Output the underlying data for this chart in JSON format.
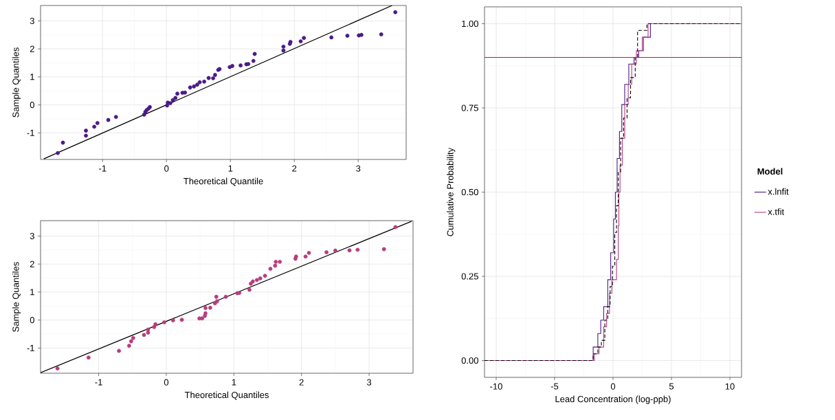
{
  "chart_data": [
    {
      "type": "scatter",
      "xlabel": "Theoretical Quantile",
      "ylabel": "Sample Quantiles",
      "xlim": [
        -1.97,
        3.75
      ],
      "ylim": [
        -1.95,
        3.55
      ],
      "xticks": [
        -1,
        0,
        1,
        2,
        3
      ],
      "yticks": [
        -1,
        0,
        1,
        2,
        3
      ],
      "grid": true,
      "series": [
        {
          "type": "scatter",
          "color": "#4b1a87",
          "x": [
            -1.7,
            -1.62,
            -1.26,
            -1.26,
            -1.13,
            -1.08,
            -0.91,
            -0.79,
            -0.35,
            -0.33,
            -0.31,
            -0.28,
            -0.26,
            0.01,
            0.02,
            0.06,
            0.1,
            0.14,
            0.17,
            0.25,
            0.29,
            0.37,
            0.43,
            0.48,
            0.52,
            0.59,
            0.66,
            0.73,
            0.76,
            0.81,
            0.83,
            0.99,
            1.03,
            1.16,
            1.25,
            1.28,
            1.36,
            1.38,
            1.83,
            1.83,
            1.93,
            1.94,
            2.1,
            2.15,
            2.58,
            2.83,
            3.01,
            3.05,
            3.36,
            3.58
          ],
          "values": [
            -1.72,
            -1.35,
            -0.92,
            -1.1,
            -0.78,
            -0.65,
            -0.54,
            -0.43,
            -0.35,
            -0.25,
            -0.19,
            -0.13,
            -0.08,
            -0.02,
            0.08,
            0.06,
            0.17,
            0.25,
            0.4,
            0.43,
            0.44,
            0.62,
            0.66,
            0.72,
            0.81,
            0.83,
            0.96,
            0.95,
            1.07,
            1.25,
            1.28,
            1.35,
            1.39,
            1.41,
            1.45,
            1.46,
            1.57,
            1.82,
            1.94,
            2.08,
            2.18,
            2.25,
            2.27,
            2.39,
            2.41,
            2.47,
            2.48,
            2.5,
            2.52,
            3.31
          ]
        },
        {
          "type": "line",
          "color": "#000000",
          "x": [
            -1.92,
            3.53
          ],
          "values": [
            -1.93,
            3.55
          ]
        }
      ]
    },
    {
      "type": "scatter",
      "xlabel": "Theoretical Quantiles",
      "ylabel": "Sample Quantiles",
      "xlim": [
        -1.86,
        3.65
      ],
      "ylim": [
        -1.9,
        3.55
      ],
      "xticks": [
        -1,
        0,
        1,
        2,
        3
      ],
      "yticks": [
        -1,
        0,
        1,
        2,
        3
      ],
      "grid": true,
      "series": [
        {
          "type": "scatter",
          "color": "#b83d7f",
          "x": [
            -1.61,
            -1.15,
            -0.7,
            -0.55,
            -0.52,
            -0.49,
            -0.33,
            -0.27,
            -0.27,
            -0.18,
            -0.16,
            -0.03,
            0.1,
            0.23,
            0.49,
            0.53,
            0.57,
            0.58,
            0.58,
            0.65,
            0.72,
            0.75,
            0.74,
            0.88,
            1.05,
            1.08,
            1.23,
            1.25,
            1.28,
            1.34,
            1.39,
            1.46,
            1.54,
            1.61,
            1.62,
            1.68,
            1.91,
            1.92,
            2.06,
            2.11,
            2.37,
            2.5,
            2.71,
            2.83,
            3.22,
            3.39
          ],
          "values": [
            -1.73,
            -1.34,
            -1.1,
            -0.92,
            -0.76,
            -0.64,
            -0.53,
            -0.45,
            -0.34,
            -0.25,
            -0.15,
            -0.08,
            -0.01,
            0.01,
            0.06,
            0.06,
            0.15,
            0.24,
            0.43,
            0.44,
            0.6,
            0.67,
            0.83,
            0.83,
            0.96,
            0.97,
            1.08,
            1.3,
            1.38,
            1.43,
            1.49,
            1.58,
            1.83,
            1.94,
            2.08,
            2.08,
            2.19,
            2.27,
            2.27,
            2.4,
            2.42,
            2.48,
            2.49,
            2.51,
            2.53,
            3.32
          ]
        },
        {
          "type": "line",
          "color": "#000000",
          "x": [
            -1.86,
            3.63
          ],
          "values": [
            -1.88,
            3.53
          ]
        }
      ]
    },
    {
      "type": "step",
      "xlabel": "Lead Concentration (log-ppb)",
      "ylabel": "Cumulative Probability",
      "legend_title": "Model",
      "legend": "right",
      "xlim": [
        -11,
        11
      ],
      "ylim": [
        -0.05,
        1.05
      ],
      "xticks": [
        -10,
        -5,
        0,
        5,
        10
      ],
      "yticks": [
        {
          "value": 0,
          "label": "0.00"
        },
        {
          "value": 0.25,
          "label": "0.25"
        },
        {
          "value": 0.5,
          "label": "0.50"
        },
        {
          "value": 0.75,
          "label": "0.75"
        },
        {
          "value": 1,
          "label": "1.00"
        }
      ],
      "grid": true,
      "ref_lines": [
        {
          "axis": "y",
          "value": 0.9,
          "color": "#ff0000"
        }
      ],
      "series": [
        {
          "name": "x.lnfit",
          "color": "#4b1a87",
          "x": [
            -11,
            -1.7,
            -1.3,
            -1.05,
            -0.8,
            -0.45,
            -0.2,
            0.05,
            0.2,
            0.35,
            0.55,
            0.75,
            1.0,
            1.35,
            1.8,
            2.2,
            2.6,
            3.2,
            11
          ],
          "values": [
            0,
            0.04,
            0.08,
            0.12,
            0.16,
            0.24,
            0.32,
            0.42,
            0.5,
            0.6,
            0.68,
            0.76,
            0.82,
            0.88,
            0.9,
            0.92,
            0.96,
            1,
            1
          ]
        },
        {
          "name": "x.tfit",
          "color": "#b83d7f",
          "x": [
            -11,
            -1.6,
            -1.2,
            -0.8,
            -0.55,
            -0.3,
            -0.1,
            0.3,
            0.45,
            0.5,
            0.6,
            0.8,
            1.0,
            1.3,
            1.6,
            2.0,
            2.5,
            3.0,
            11
          ],
          "values": [
            0,
            0.02,
            0.04,
            0.1,
            0.14,
            0.2,
            0.24,
            0.3,
            0.4,
            0.5,
            0.58,
            0.66,
            0.76,
            0.82,
            0.88,
            0.92,
            0.96,
            1,
            1
          ]
        },
        {
          "color": "#000000",
          "line_style": "dashed",
          "x": [
            -11,
            -1.7,
            -1.3,
            -1.0,
            -0.7,
            -0.45,
            -0.25,
            -0.05,
            0.15,
            0.3,
            0.45,
            0.65,
            0.9,
            1.2,
            1.5,
            1.9,
            2.1,
            2.9,
            11
          ],
          "values": [
            0,
            0.02,
            0.04,
            0.06,
            0.12,
            0.16,
            0.22,
            0.28,
            0.38,
            0.46,
            0.56,
            0.66,
            0.72,
            0.78,
            0.84,
            0.9,
            0.98,
            1,
            1
          ]
        }
      ]
    }
  ]
}
